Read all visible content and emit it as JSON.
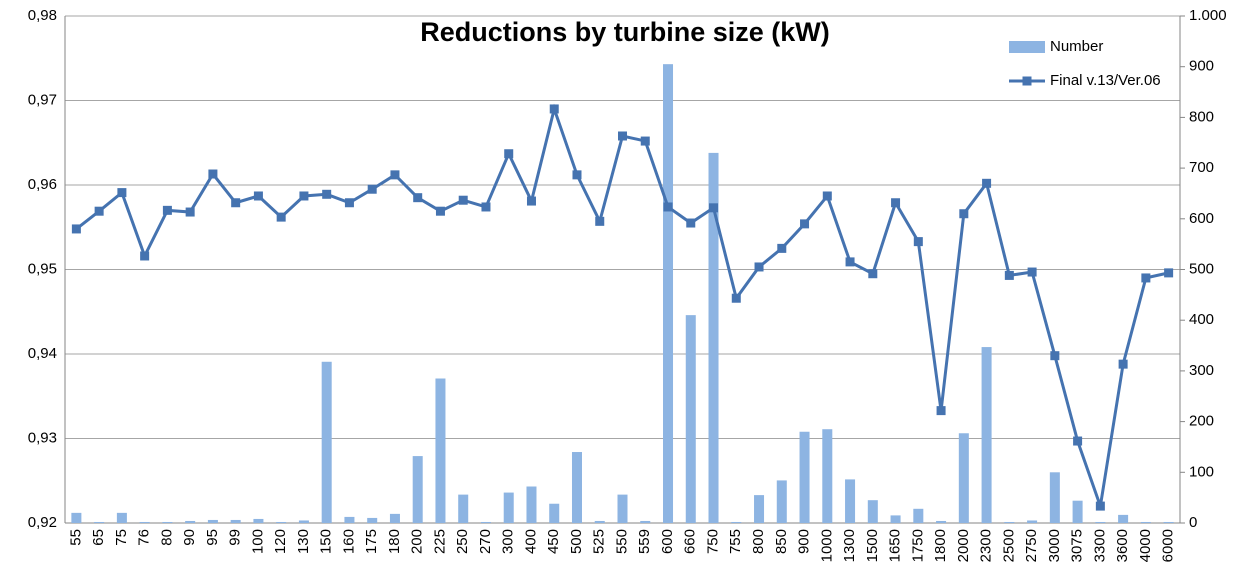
{
  "chart_data": {
    "type": "bar_line",
    "title": "Reductions by turbine size (kW)",
    "categories": [
      "55",
      "65",
      "75",
      "76",
      "80",
      "90",
      "95",
      "99",
      "100",
      "120",
      "130",
      "150",
      "160",
      "175",
      "180",
      "200",
      "225",
      "250",
      "270",
      "300",
      "400",
      "450",
      "500",
      "525",
      "550",
      "559",
      "600",
      "660",
      "750",
      "755",
      "800",
      "850",
      "900",
      "1000",
      "1300",
      "1500",
      "1650",
      "1750",
      "1800",
      "2000",
      "2300",
      "2500",
      "2750",
      "3000",
      "3075",
      "3300",
      "3600",
      "4000",
      "6000"
    ],
    "series": [
      {
        "name": "Number",
        "type": "bar",
        "axis": "y2",
        "color": "#8db4e2",
        "values": [
          20,
          2,
          20,
          2,
          2,
          4,
          6,
          6,
          8,
          2,
          5,
          318,
          12,
          10,
          18,
          132,
          285,
          56,
          2,
          60,
          72,
          38,
          140,
          4,
          56,
          4,
          905,
          410,
          730,
          2,
          55,
          84,
          180,
          185,
          86,
          45,
          15,
          28,
          4,
          177,
          347,
          2,
          5,
          100,
          44,
          2,
          16,
          2,
          2
        ]
      },
      {
        "name": "Final v.13/Ver.06",
        "type": "line",
        "axis": "y",
        "color": "#4573b0",
        "values": [
          0.9548,
          0.9569,
          0.9591,
          0.9516,
          0.957,
          0.9568,
          0.9613,
          0.9579,
          0.9587,
          0.9562,
          0.9587,
          0.9589,
          0.9579,
          0.9595,
          0.9612,
          0.9585,
          0.9569,
          0.9582,
          0.9574,
          0.9637,
          0.9581,
          0.969,
          0.9612,
          0.9557,
          0.9658,
          0.9652,
          0.9574,
          0.9555,
          0.9573,
          0.9466,
          0.9503,
          0.9525,
          0.9554,
          0.9587,
          0.9509,
          0.9495,
          0.9579,
          0.9533,
          0.9333,
          0.9566,
          0.9602,
          0.9493,
          0.9497,
          0.9398,
          0.9297,
          0.922,
          0.9388,
          0.949,
          0.9496
        ]
      }
    ],
    "ylim": [
      0.92,
      0.98
    ],
    "yticks": [
      {
        "value": 0.92,
        "label": "0,92"
      },
      {
        "value": 0.93,
        "label": "0,93"
      },
      {
        "value": 0.94,
        "label": "0,94"
      },
      {
        "value": 0.95,
        "label": "0,95"
      },
      {
        "value": 0.96,
        "label": "0,96"
      },
      {
        "value": 0.97,
        "label": "0,97"
      },
      {
        "value": 0.98,
        "label": "0,98"
      }
    ],
    "y2lim": [
      0,
      1000
    ],
    "y2ticks": [
      0,
      100,
      200,
      300,
      400,
      500,
      600,
      700,
      800,
      900,
      {
        "value": 1000,
        "label": "1.000"
      }
    ],
    "grid": true,
    "legend": "top-right"
  }
}
